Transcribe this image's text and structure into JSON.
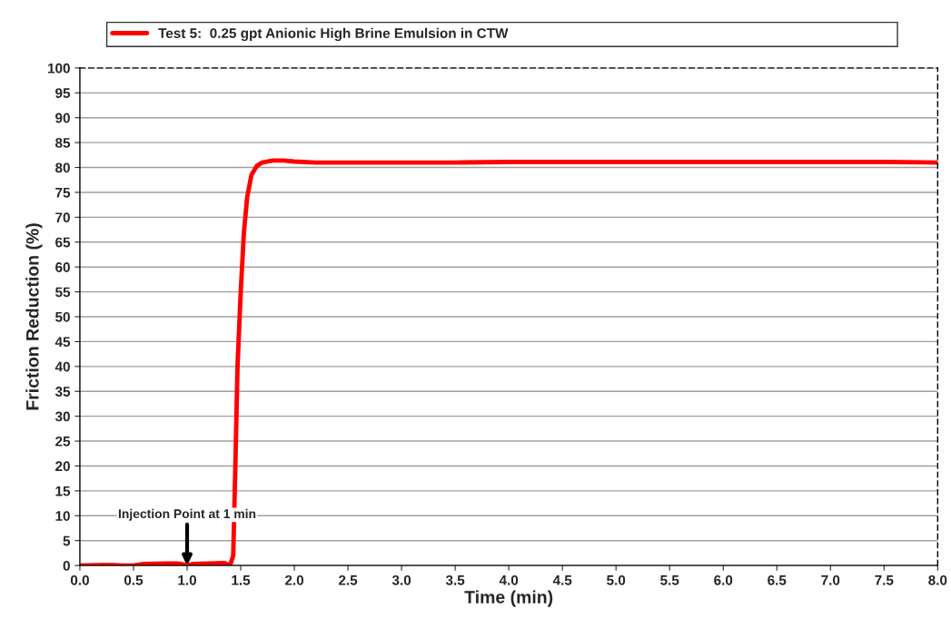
{
  "chart_data": {
    "type": "line",
    "xlabel": "Time (min)",
    "ylabel": "Friction Reduction (%)",
    "x": [
      0,
      0.2,
      0.3,
      0.4,
      0.5,
      0.6,
      0.8,
      0.9,
      0.95,
      1.0,
      1.05,
      1.2,
      1.35,
      1.4,
      1.43,
      1.45,
      1.47,
      1.5,
      1.53,
      1.56,
      1.6,
      1.65,
      1.7,
      1.8,
      1.9,
      2.0,
      2.2,
      2.5,
      3.0,
      3.5,
      4.0,
      4.5,
      5.0,
      5.5,
      6.0,
      6.5,
      7.0,
      7.5,
      8.0
    ],
    "series": [
      {
        "name": "Test 5:  0.25 gpt Anionic High Brine Emulsion in CTW",
        "color": "#ff0000",
        "values": [
          0,
          0.1,
          0.1,
          0,
          0,
          0.3,
          0.4,
          0.4,
          0.3,
          0,
          0.3,
          0.4,
          0.5,
          0,
          2,
          20,
          40,
          55,
          67,
          74,
          78.5,
          80.3,
          81,
          81.4,
          81.4,
          81.2,
          81,
          81,
          81,
          81,
          81.1,
          81.1,
          81.1,
          81.1,
          81.1,
          81.1,
          81.1,
          81.1,
          81
        ]
      }
    ],
    "xlim": [
      0,
      8
    ],
    "ylim": [
      0,
      100
    ],
    "xticks": [
      {
        "value": 0,
        "label": "0.0"
      },
      {
        "value": 0.5,
        "label": "0.5"
      },
      {
        "value": 1,
        "label": "1.0"
      },
      {
        "value": 1.5,
        "label": "1.5"
      },
      {
        "value": 2,
        "label": "2.0"
      },
      {
        "value": 2.5,
        "label": "2.5"
      },
      {
        "value": 3,
        "label": "3.0"
      },
      {
        "value": 3.5,
        "label": "3.5"
      },
      {
        "value": 4,
        "label": "4.0"
      },
      {
        "value": 4.5,
        "label": "4.5"
      },
      {
        "value": 5,
        "label": "5.0"
      },
      {
        "value": 5.5,
        "label": "5.5"
      },
      {
        "value": 6,
        "label": "6.0"
      },
      {
        "value": 6.5,
        "label": "6.5"
      },
      {
        "value": 7,
        "label": "7.0"
      },
      {
        "value": 7.5,
        "label": "7.5"
      },
      {
        "value": 8,
        "label": "8.0"
      }
    ],
    "yticks": [
      0,
      5,
      10,
      15,
      20,
      25,
      30,
      35,
      40,
      45,
      50,
      55,
      60,
      65,
      70,
      75,
      80,
      85,
      90,
      95,
      100
    ],
    "grid": "y",
    "legend": "top",
    "marker": "none",
    "line_style": "solid",
    "annotations": [
      {
        "text": "Injection Point at 1 min",
        "x": 1.0,
        "y": 0
      }
    ]
  }
}
